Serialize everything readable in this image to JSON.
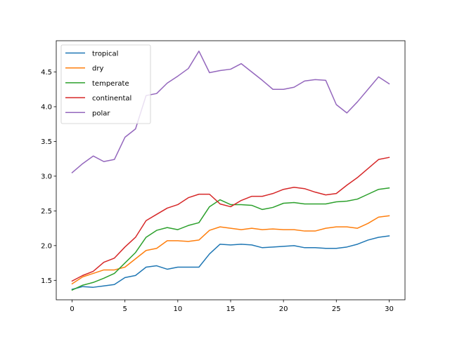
{
  "chart_data": {
    "type": "line",
    "title": "",
    "xlabel": "",
    "ylabel": "",
    "xlim": [
      -1.5,
      31.5
    ],
    "ylim": [
      1.22,
      4.95
    ],
    "x_ticks": [
      0,
      5,
      10,
      15,
      20,
      25,
      30
    ],
    "y_ticks": [
      1.5,
      2.0,
      2.5,
      3.0,
      3.5,
      4.0,
      4.5
    ],
    "y_tick_labels": [
      "1.5",
      "2.0",
      "2.5",
      "3.0",
      "3.5",
      "4.0",
      "4.5"
    ],
    "grid": false,
    "legend": "top-left",
    "x": [
      0,
      1,
      2,
      3,
      4,
      5,
      6,
      7,
      8,
      9,
      10,
      11,
      12,
      13,
      14,
      15,
      16,
      17,
      18,
      19,
      20,
      21,
      22,
      23,
      24,
      25,
      26,
      27,
      28,
      29,
      30
    ],
    "series": [
      {
        "name": "tropical",
        "color": "#1f77b4",
        "values": [
          1.37,
          1.41,
          1.4,
          1.42,
          1.44,
          1.54,
          1.57,
          1.69,
          1.71,
          1.66,
          1.69,
          1.69,
          1.69,
          1.88,
          2.02,
          2.01,
          2.02,
          2.01,
          1.97,
          1.98,
          1.99,
          2.0,
          1.97,
          1.97,
          1.96,
          1.96,
          1.98,
          2.02,
          2.08,
          2.12,
          2.14
        ]
      },
      {
        "name": "dry",
        "color": "#ff7f0e",
        "values": [
          1.45,
          1.55,
          1.6,
          1.65,
          1.65,
          1.69,
          1.81,
          1.93,
          1.96,
          2.07,
          2.07,
          2.06,
          2.08,
          2.22,
          2.27,
          2.25,
          2.23,
          2.25,
          2.23,
          2.24,
          2.23,
          2.23,
          2.21,
          2.21,
          2.25,
          2.27,
          2.27,
          2.25,
          2.32,
          2.41,
          2.43
        ]
      },
      {
        "name": "temperate",
        "color": "#2ca02c",
        "values": [
          1.36,
          1.43,
          1.47,
          1.53,
          1.6,
          1.75,
          1.9,
          2.12,
          2.22,
          2.26,
          2.23,
          2.29,
          2.33,
          2.56,
          2.66,
          2.59,
          2.59,
          2.58,
          2.52,
          2.55,
          2.61,
          2.62,
          2.6,
          2.6,
          2.6,
          2.63,
          2.64,
          2.67,
          2.74,
          2.81,
          2.83
        ]
      },
      {
        "name": "continental",
        "color": "#d62728",
        "values": [
          1.49,
          1.57,
          1.63,
          1.76,
          1.82,
          1.98,
          2.12,
          2.36,
          2.45,
          2.54,
          2.59,
          2.69,
          2.74,
          2.74,
          2.6,
          2.56,
          2.65,
          2.71,
          2.71,
          2.75,
          2.81,
          2.84,
          2.82,
          2.77,
          2.73,
          2.75,
          2.87,
          2.98,
          3.11,
          3.24,
          3.27
        ]
      },
      {
        "name": "polar",
        "color": "#9467bd",
        "values": [
          3.05,
          3.18,
          3.29,
          3.21,
          3.24,
          3.56,
          3.68,
          4.16,
          4.19,
          4.34,
          4.44,
          4.55,
          4.8,
          4.49,
          4.52,
          4.54,
          4.62,
          4.5,
          4.38,
          4.25,
          4.25,
          4.28,
          4.37,
          4.39,
          4.38,
          4.03,
          3.91,
          4.07,
          4.25,
          4.43,
          4.33
        ]
      }
    ]
  }
}
